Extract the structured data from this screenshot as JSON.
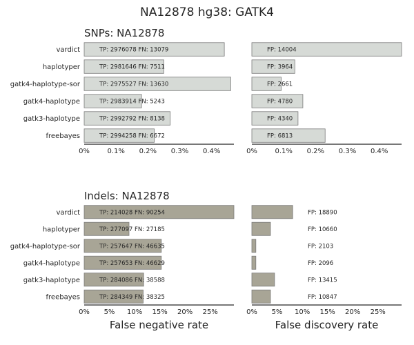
{
  "figure": {
    "title": "NA12878 hg38: GATK4"
  },
  "chart_data": [
    {
      "id": "snp_fnr",
      "type": "bar",
      "orientation": "horizontal",
      "title": "SNPs: NA12878",
      "categories": [
        "vardict",
        "haplotyper",
        "gatk4-haplotype-sor",
        "gatk4-haplotype",
        "gatk3-haplotype",
        "freebayes"
      ],
      "values": [
        0.0044,
        0.0025,
        0.0046,
        0.0018,
        0.0027,
        0.0022
      ],
      "bar_labels": [
        "TP: 2976078 FN: 13079",
        "TP: 2981646 FN: 7511",
        "TP: 2975527 FN: 13630",
        "TP: 2983914 FN: 5243",
        "TP: 2992792 FN: 8138",
        "TP: 2994258 FN: 6672"
      ],
      "xticks": [
        0,
        0.001,
        0.002,
        0.003,
        0.004
      ],
      "xtick_labels": [
        "0%",
        "0.1%",
        "0.2%",
        "0.3%",
        "0.4%"
      ],
      "xlim": [
        0,
        0.0047
      ],
      "color": "#d6dad6"
    },
    {
      "id": "snp_fdr",
      "type": "bar",
      "orientation": "horizontal",
      "title": "",
      "categories": [
        "vardict",
        "haplotyper",
        "gatk4-haplotype-sor",
        "gatk4-haplotype",
        "gatk3-haplotype",
        "freebayes"
      ],
      "values": [
        0.0047,
        0.00135,
        0.00092,
        0.0016,
        0.00145,
        0.0023
      ],
      "bar_labels": [
        "FP: 14004",
        "FP: 3964",
        "FP: 2661",
        "FP: 4780",
        "FP: 4340",
        "FP: 6813"
      ],
      "xticks": [
        0,
        0.001,
        0.002,
        0.003,
        0.004
      ],
      "xtick_labels": [
        "0%",
        "0.1%",
        "0.2%",
        "0.3%",
        "0.4%"
      ],
      "xlim": [
        0,
        0.0047
      ],
      "color": "#d6dad6"
    },
    {
      "id": "indel_fnr",
      "type": "bar",
      "orientation": "horizontal",
      "title": "Indels: NA12878",
      "categories": [
        "vardict",
        "haplotyper",
        "gatk4-haplotype-sor",
        "gatk4-haplotype",
        "gatk3-haplotype",
        "freebayes"
      ],
      "values": [
        0.297,
        0.089,
        0.153,
        0.153,
        0.118,
        0.117
      ],
      "bar_labels": [
        "TP: 214028 FN: 90254",
        "TP: 277097 FN: 27185",
        "TP: 257647 FN: 46635",
        "TP: 257653 FN: 46629",
        "TP: 284086 FN: 38588",
        "TP: 284349 FN: 38325"
      ],
      "xticks": [
        0,
        0.05,
        0.1,
        0.15,
        0.2,
        0.25
      ],
      "xtick_labels": [
        "0%",
        "5%",
        "10%",
        "15%",
        "20%",
        "25%"
      ],
      "xlim": [
        0,
        0.297
      ],
      "xlabel": "False negative rate",
      "color": "#a8a596"
    },
    {
      "id": "indel_fdr",
      "type": "bar",
      "orientation": "horizontal",
      "title": "",
      "categories": [
        "vardict",
        "haplotyper",
        "gatk4-haplotype-sor",
        "gatk4-haplotype",
        "gatk3-haplotype",
        "freebayes"
      ],
      "values": [
        0.081,
        0.037,
        0.008,
        0.008,
        0.045,
        0.037
      ],
      "bar_labels": [
        "FP: 18890",
        "FP: 10660",
        "FP: 2103",
        "FP: 2096",
        "FP: 13415",
        "FP: 10847"
      ],
      "xticks": [
        0,
        0.05,
        0.1,
        0.15,
        0.2,
        0.25
      ],
      "xtick_labels": [
        "0%",
        "5%",
        "10%",
        "15%",
        "20%",
        "25%"
      ],
      "xlim": [
        0,
        0.297
      ],
      "xlabel": "False discovery rate",
      "color": "#a8a596"
    }
  ]
}
